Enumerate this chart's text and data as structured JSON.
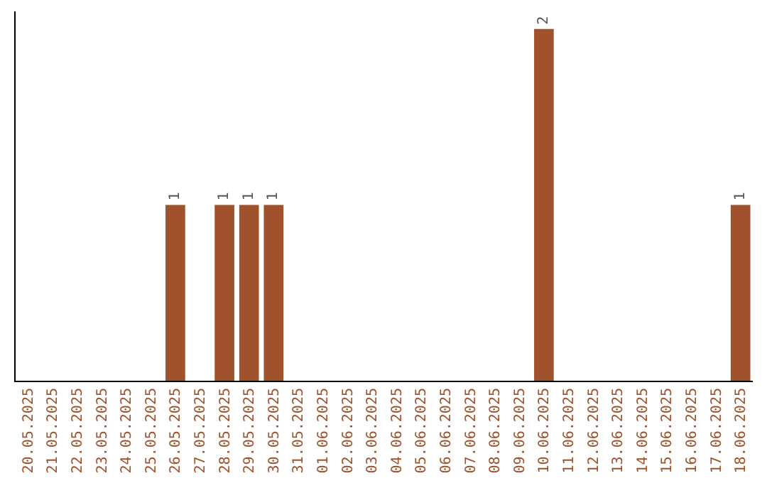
{
  "chart_data": {
    "type": "bar",
    "categories": [
      "20.05.2025",
      "21.05.2025",
      "22.05.2025",
      "23.05.2025",
      "24.05.2025",
      "25.05.2025",
      "26.05.2025",
      "27.05.2025",
      "28.05.2025",
      "29.05.2025",
      "30.05.2025",
      "31.05.2025",
      "01.06.2025",
      "02.06.2025",
      "03.06.2025",
      "04.06.2025",
      "05.06.2025",
      "06.06.2025",
      "07.06.2025",
      "08.06.2025",
      "09.06.2025",
      "10.06.2025",
      "11.06.2025",
      "12.06.2025",
      "13.06.2025",
      "14.06.2025",
      "15.06.2025",
      "16.06.2025",
      "17.06.2025",
      "18.06.2025"
    ],
    "values": [
      0,
      0,
      0,
      0,
      0,
      0,
      1,
      0,
      1,
      1,
      1,
      0,
      0,
      0,
      0,
      0,
      0,
      0,
      0,
      0,
      0,
      2,
      0,
      0,
      0,
      0,
      0,
      0,
      0,
      1
    ],
    "value_labels": [
      null,
      null,
      null,
      null,
      null,
      null,
      "1",
      null,
      "1",
      "1",
      "1",
      null,
      null,
      null,
      null,
      null,
      null,
      null,
      null,
      null,
      null,
      "2",
      null,
      null,
      null,
      null,
      null,
      null,
      null,
      "1"
    ],
    "color": "#a0522d",
    "ylim": [
      0,
      2.1
    ],
    "tick_labels": "x",
    "grid": false,
    "legend": false
  }
}
